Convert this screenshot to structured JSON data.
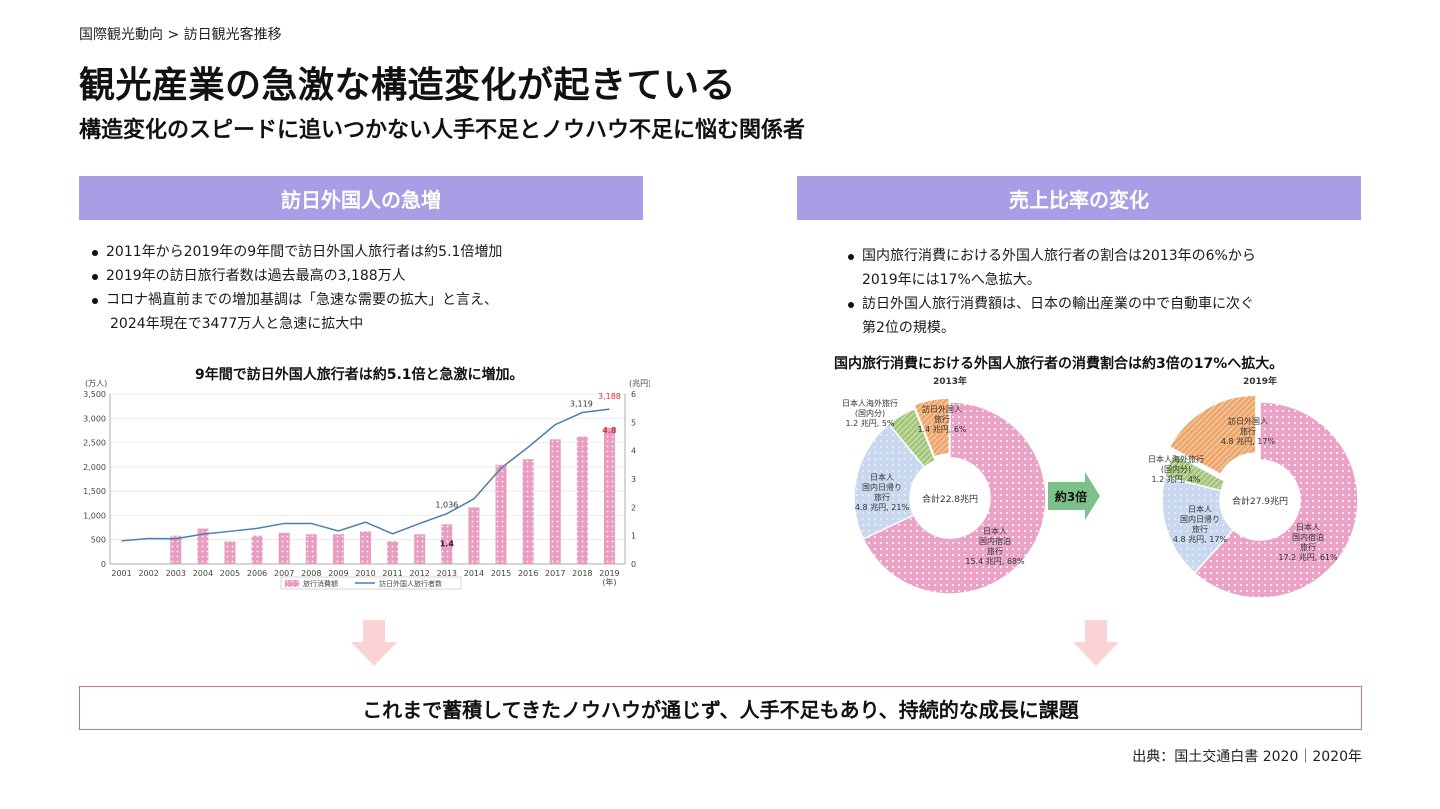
{
  "breadcrumb": "国際観光動向 > 訪日観光客推移",
  "title": "観光産業の急激な構造変化が起きている",
  "subtitle": "構造変化のスピードに追いつかない人手不足とノウハウ不足に悩む関係者",
  "left": {
    "header": "訪日外国人の急増",
    "bullets": [
      "2011年から2019年の9年間で訪日外国人旅行者は約5.1倍増加",
      "2019年の訪日旅行者数は過去最高の3,188万人",
      "コロナ禍直前までの増加基調は「急速な需要の拡大」と言え、",
      "2024年現在で3477万人と急速に拡大中"
    ],
    "chart_title": "9年間で訪日外国人旅行者は約5.1倍と急激に増加。"
  },
  "right": {
    "header": "売上比率の変化",
    "bullets": [
      "国内旅行消費における外国人旅行者の割合は2013年の6%から",
      "2019年には17%へ急拡大。",
      "訪日外国人旅行消費額は、日本の輸出産業の中で自動車に次ぐ",
      "第2位の規模。"
    ],
    "chart_title": "国内旅行消費における外国人旅行者の消費割合は約3倍の17%へ拡大。"
  },
  "conclusion": "これまで蓄積してきたノウハウが通じず、人手不足もあり、持続的な成長に課題",
  "source": "出典：国土交通白書 2020｜2020年",
  "colors": {
    "accent": "#a89ee6",
    "bar": "#e99cc0",
    "line": "#4a7fb5",
    "arrow": "#f7c9cc",
    "green_arrow": "#7cc08a",
    "conclusion_border": "#e06a72"
  },
  "chart_data": [
    {
      "type": "bar",
      "categories": [
        "2001",
        "2002",
        "2003",
        "2004",
        "2005",
        "2006",
        "2007",
        "2008",
        "2009",
        "2010",
        "2011",
        "2012",
        "2013",
        "2014",
        "2015",
        "2016",
        "2017",
        "2018",
        "2019"
      ],
      "y_left_unit": "(万人)",
      "y_right_unit": "(兆円)",
      "x_unit": "(年)",
      "ylim_left": [
        0,
        3500
      ],
      "ylim_right": [
        0,
        6
      ],
      "yticks_left": [
        "0",
        "500",
        "1,000",
        "1,500",
        "2,000",
        "2,500",
        "3,000",
        "3,500"
      ],
      "yticks_right": [
        "0",
        "1",
        "2",
        "3",
        "4",
        "5",
        "6"
      ],
      "series": [
        {
          "name": "旅行消費額",
          "type": "bar",
          "axis": "right",
          "values": [
            null,
            null,
            1.0,
            1.25,
            0.8,
            1.0,
            1.1,
            1.05,
            1.05,
            1.15,
            0.8,
            1.05,
            1.4,
            2.0,
            3.5,
            3.7,
            4.4,
            4.5,
            4.8
          ]
        },
        {
          "name": "訪日外国人旅行者数",
          "type": "line",
          "axis": "left",
          "values": [
            477,
            524,
            521,
            614,
            673,
            733,
            835,
            835,
            679,
            861,
            622,
            836,
            1036,
            1341,
            1974,
            2404,
            2869,
            3119,
            3188
          ]
        }
      ],
      "annotations": [
        "1,036",
        "1.4",
        "3,119",
        "3,188",
        "4.8"
      ],
      "legend": "bottom"
    },
    {
      "type": "pie",
      "title": "2013年",
      "center_label": "合計22.8兆円",
      "slices": [
        {
          "label": [
            "日本人",
            "国内宿泊",
            "旅行",
            "15.4 兆円, 68%"
          ],
          "value": 68
        },
        {
          "label": [
            "日本人",
            "国内日帰り",
            "旅行",
            "4.8 兆円, 21%"
          ],
          "value": 21
        },
        {
          "label": [
            "日本人海外旅行",
            "(国内分)",
            "1.2 兆円, 5%"
          ],
          "value": 5
        },
        {
          "label": [
            "訪日外国人",
            "旅行",
            "1.4 兆円, 6%"
          ],
          "value": 6
        }
      ]
    },
    {
      "type": "pie",
      "title": "2019年",
      "center_label": "合計27.9兆円",
      "slices": [
        {
          "label": [
            "日本人",
            "国内宿泊",
            "旅行",
            "17.2 兆円, 61%"
          ],
          "value": 61
        },
        {
          "label": [
            "日本人",
            "国内日帰り",
            "旅行",
            "4.8 兆円, 17%"
          ],
          "value": 17
        },
        {
          "label": [
            "日本人海外旅行",
            "(国内分)",
            "1.2 兆円, 4%"
          ],
          "value": 4
        },
        {
          "label": [
            "訪日外国人",
            "旅行",
            "4.8 兆円, 17%"
          ],
          "value": 17
        }
      ]
    }
  ],
  "transition_label": "約3倍"
}
